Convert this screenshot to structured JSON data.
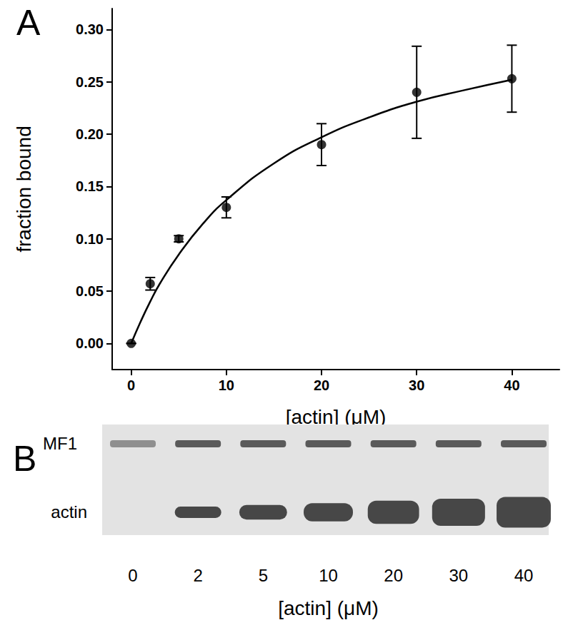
{
  "chart_data": {
    "type": "scatter",
    "title": "A",
    "x_label": "[actin] (μM)",
    "y_label": "fraction bound",
    "series": [
      {
        "type": "scatter",
        "color": "#000000",
        "marker": "circle",
        "x": [
          0,
          2,
          5,
          10,
          20,
          30,
          40
        ],
        "values": [
          0,
          0.057,
          0.1,
          0.13,
          0.19,
          0.24,
          0.253
        ],
        "errors": [
          0,
          0.006,
          0.003,
          0.01,
          0.02,
          0.044,
          0.032
        ]
      },
      {
        "type": "line",
        "color": "#000000",
        "line_style": "solid",
        "x": [
          0,
          1,
          2,
          3,
          5,
          7.5,
          10,
          15,
          20,
          25,
          30,
          35,
          40
        ],
        "values": [
          0,
          0.021,
          0.04,
          0.057,
          0.085,
          0.114,
          0.137,
          0.172,
          0.197,
          0.216,
          0.231,
          0.242,
          0.252
        ]
      }
    ],
    "xlim": [
      -2,
      45
    ],
    "xticks": [
      0,
      10,
      20,
      30,
      40
    ],
    "ylim": [
      -0.025,
      0.32
    ],
    "yticks": [
      {
        "value": 0,
        "label": "0.00"
      },
      {
        "value": 0.05,
        "label": "0.05"
      },
      {
        "value": 0.1,
        "label": "0.10"
      },
      {
        "value": 0.15,
        "label": "0.15"
      },
      {
        "value": 0.2,
        "label": "0.20"
      },
      {
        "value": 0.25,
        "label": "0.25"
      },
      {
        "value": 0.3,
        "label": "0.30"
      }
    ],
    "grid": false,
    "legend": "none"
  },
  "gel": {
    "panel_label": "B",
    "bands": [
      "MF1",
      "actin"
    ],
    "lanes": [
      0,
      2,
      5,
      10,
      20,
      30,
      40
    ],
    "x_label": "[actin] (μM)"
  }
}
